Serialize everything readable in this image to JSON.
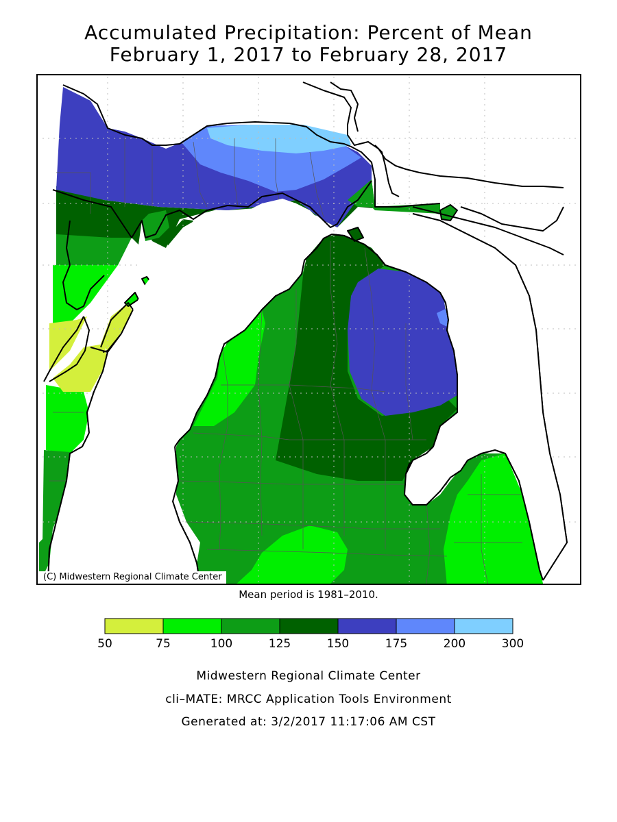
{
  "title": {
    "line1": "Accumulated Precipitation: Percent of Mean",
    "line2": "February 1, 2017 to February 28, 2017"
  },
  "map": {
    "copyright": "(C) Midwestern Regional Climate Center",
    "mean_note": "Mean period is 1981–2010."
  },
  "legend": {
    "ticks": [
      "50",
      "75",
      "100",
      "125",
      "150",
      "175",
      "200",
      "300"
    ],
    "colors": [
      "#d4ef3c",
      "#00ef00",
      "#0d9d16",
      "#006100",
      "#3d3fbf",
      "#5f87fb",
      "#7fcfff"
    ]
  },
  "footer": {
    "org": "Midwestern Regional Climate Center",
    "tool": "cli–MATE: MRCC Application Tools Environment",
    "generated": "Generated at: 3/2/2017 11:17:06 AM CST"
  }
}
